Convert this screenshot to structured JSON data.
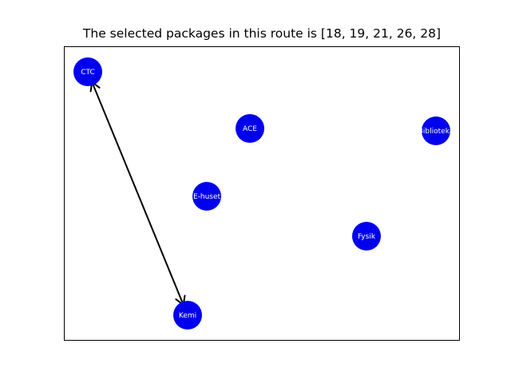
{
  "title": "The selected packages in this route is [18, 19, 21, 26, 28]",
  "colors": {
    "node": "#0000ee",
    "edge": "#000000",
    "label": "#ffffff",
    "frame": "#000000"
  },
  "nodes": [
    {
      "id": "ctc",
      "label": "CTC"
    },
    {
      "id": "ace",
      "label": "ACE"
    },
    {
      "id": "bibliotek",
      "label": "Biblioteka"
    },
    {
      "id": "ehuset",
      "label": "E-huset"
    },
    {
      "id": "fysik",
      "label": "Fysik"
    },
    {
      "id": "kemi",
      "label": "Kemi"
    }
  ],
  "edges": [
    {
      "from": "ctc",
      "to": "kemi",
      "direction": "both"
    }
  ]
}
